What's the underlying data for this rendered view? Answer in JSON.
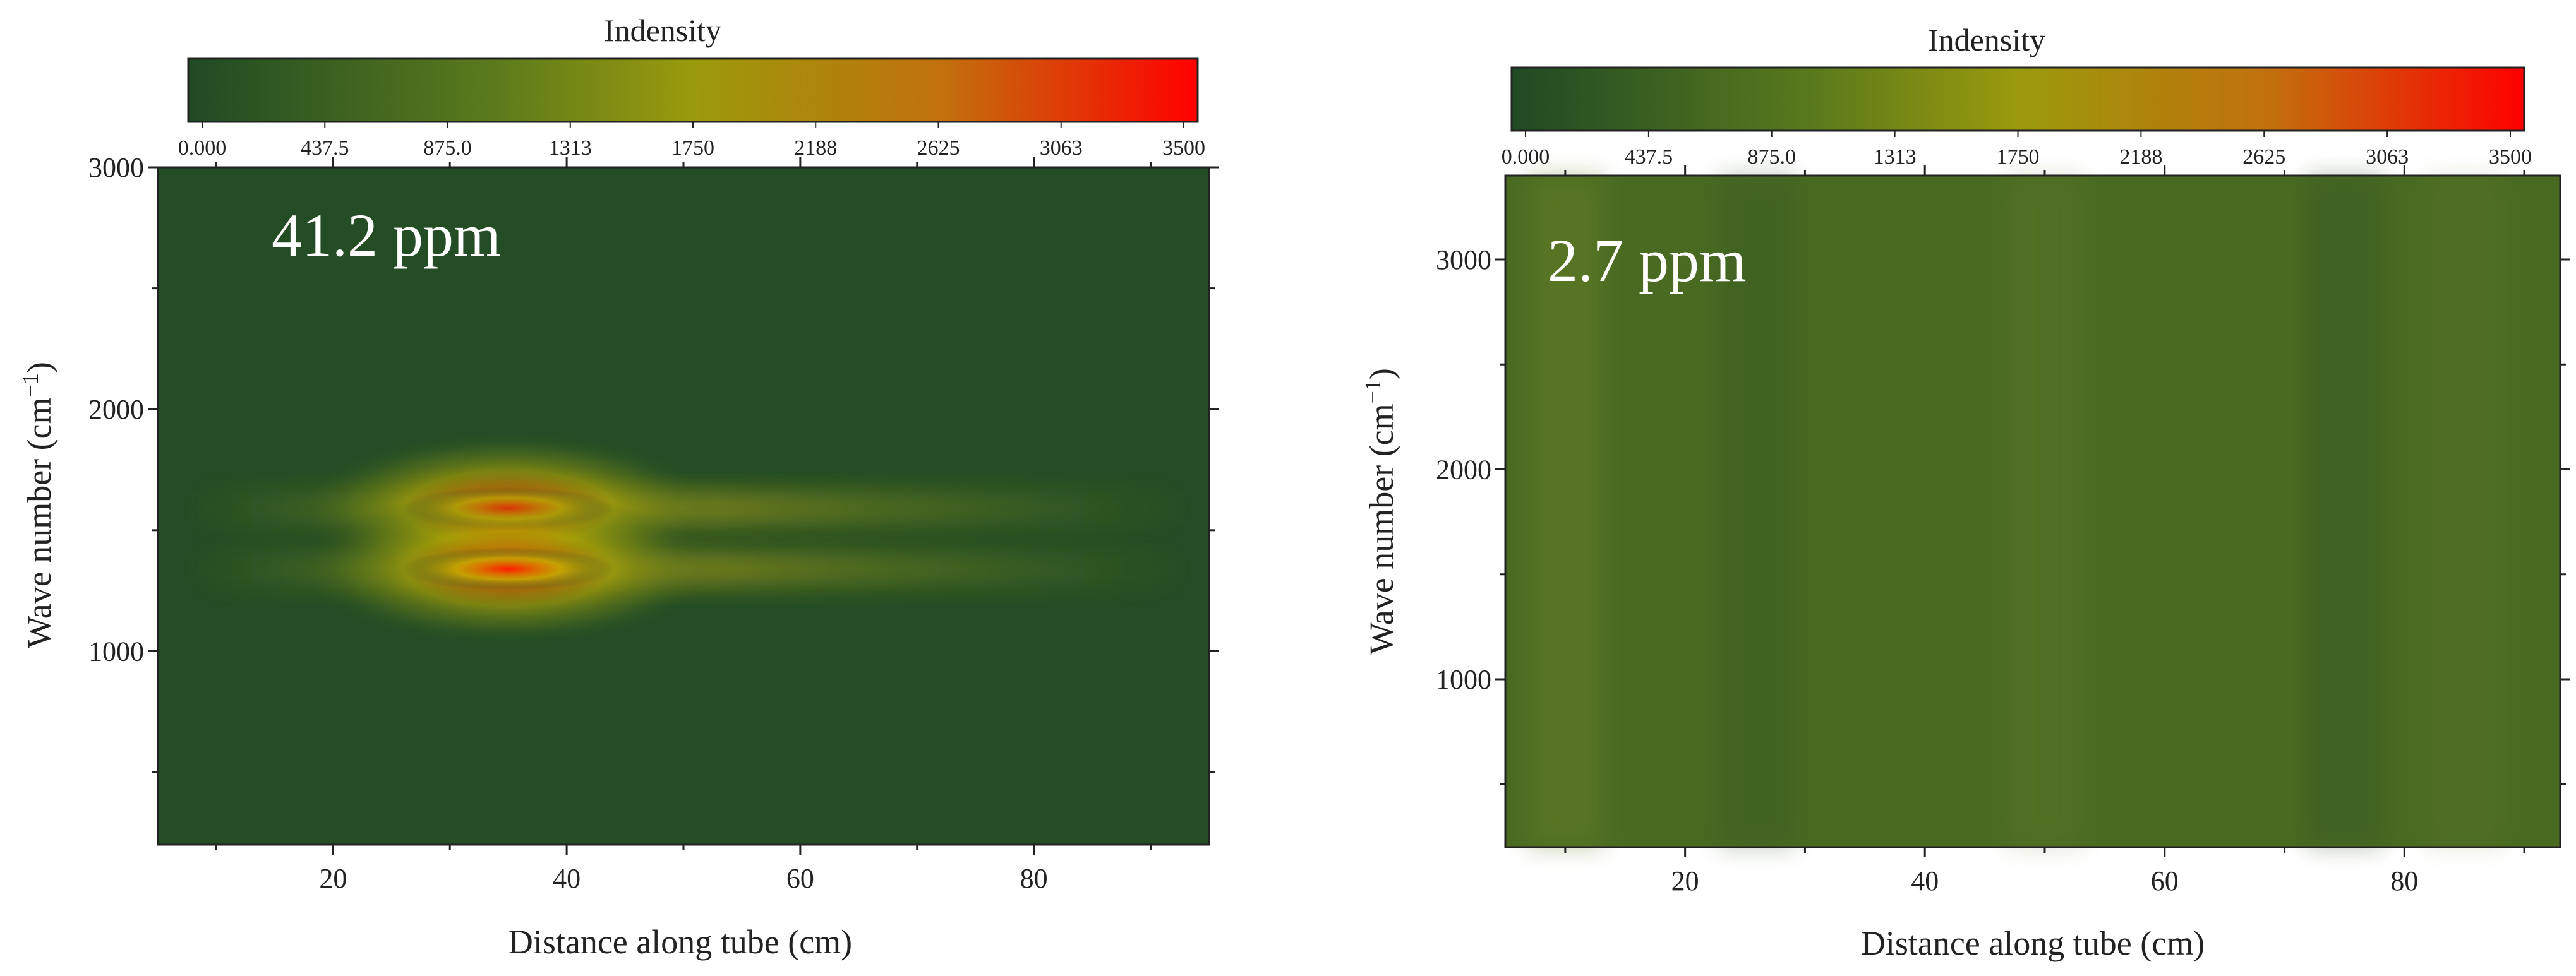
{
  "chart_data": [
    {
      "type": "heatmap",
      "annotation": "41.2 ppm",
      "xlabel": "Distance along tube (cm)",
      "ylabel": "Wave number (cm",
      "ylabel_sup": "−1",
      "ylabel_close": ")",
      "xlim": [
        5,
        95
      ],
      "ylim": [
        200,
        3000
      ],
      "xticks": [
        20,
        40,
        60,
        80
      ],
      "yticks": [
        1000,
        2000,
        3000
      ],
      "colorbar": {
        "label": "Indensity",
        "ticks": [
          "0.000",
          "437.5",
          "875.0",
          "1313",
          "1750",
          "2188",
          "2625",
          "3063",
          "3500"
        ],
        "range": [
          0,
          3500
        ]
      },
      "background_intensity": 150,
      "peaks": [
        {
          "x": 35,
          "y": 1590,
          "intensity": 3500
        },
        {
          "x": 35,
          "y": 1340,
          "intensity": 3300
        }
      ]
    },
    {
      "type": "heatmap",
      "annotation": "2.7 ppm",
      "xlabel": "Distance along tube (cm)",
      "ylabel": "Wave number (cm",
      "ylabel_sup": "−1",
      "ylabel_close": ")",
      "xlim": [
        5,
        93
      ],
      "ylim": [
        200,
        3400
      ],
      "xticks": [
        20,
        40,
        60,
        80
      ],
      "yticks": [
        1000,
        2000,
        3000
      ],
      "colorbar": {
        "label": "Indensity",
        "ticks": [
          "0.000",
          "437.5",
          "875.0",
          "1313",
          "1750",
          "2188",
          "2625",
          "3063",
          "3500"
        ],
        "range": [
          0,
          3500
        ]
      },
      "background_intensity": 550,
      "peaks": []
    }
  ],
  "colors": {
    "cmap": [
      "#1f4a24",
      "#5a7a1c",
      "#9a9a0c",
      "#c2700c",
      "#ff0000"
    ],
    "axis": "#222222",
    "annotation_text": "#ffffff"
  }
}
